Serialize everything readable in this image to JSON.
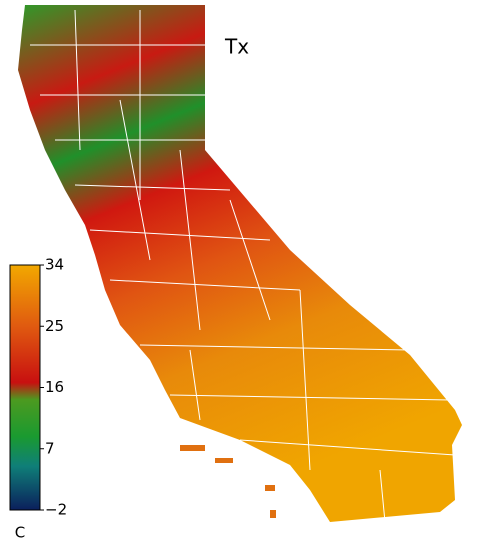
{
  "title": "Tx",
  "colorbar": {
    "unit": "C",
    "lim": [
      -2,
      34
    ],
    "ticks": [
      {
        "value": -2,
        "label": "−2"
      },
      7,
      16,
      25,
      34
    ]
  }
}
